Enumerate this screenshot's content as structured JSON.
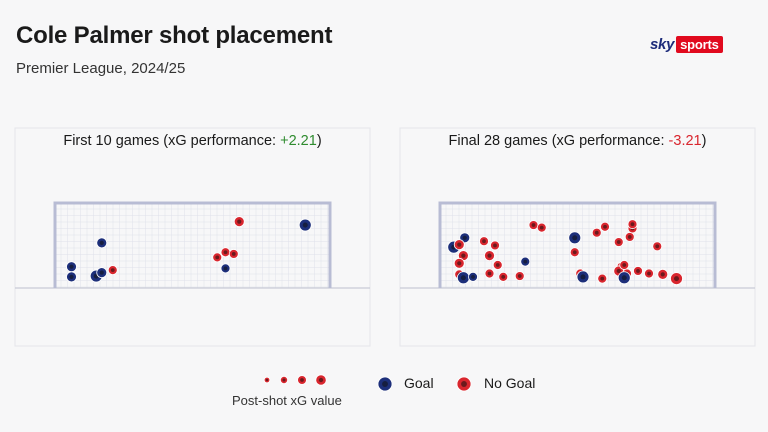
{
  "header": {
    "title": "Cole Palmer shot placement",
    "subtitle": "Premier League, 2024/25",
    "logo_sky": "sky",
    "logo_sports": "sports"
  },
  "colors": {
    "goal": "#1d2f7a",
    "no_goal": "#d9262e",
    "positive": "#2e8b2e",
    "negative": "#d9262e",
    "post": "#b8bcd4"
  },
  "legend": {
    "size_label": "Post-shot xG value",
    "goal": "Goal",
    "no_goal": "No Goal"
  },
  "chart_data": [
    {
      "type": "scatter",
      "title_prefix": "First 10 games  (xG performance: ",
      "title_value": "+2.21",
      "title_suffix": ")",
      "value_sign": "positive",
      "points": [
        {
          "x": 0.17,
          "y": 0.46,
          "r": 5,
          "outcome": "goal"
        },
        {
          "x": 0.06,
          "y": 0.18,
          "r": 5,
          "outcome": "goal"
        },
        {
          "x": 0.06,
          "y": 0.06,
          "r": 5,
          "outcome": "goal"
        },
        {
          "x": 0.15,
          "y": 0.07,
          "r": 6,
          "outcome": "goal"
        },
        {
          "x": 0.17,
          "y": 0.11,
          "r": 5,
          "outcome": "goal"
        },
        {
          "x": 0.21,
          "y": 0.14,
          "r": 4.5,
          "outcome": "no_goal"
        },
        {
          "x": 0.62,
          "y": 0.16,
          "r": 4.5,
          "outcome": "goal"
        },
        {
          "x": 0.59,
          "y": 0.29,
          "r": 4.5,
          "outcome": "no_goal"
        },
        {
          "x": 0.62,
          "y": 0.35,
          "r": 4.5,
          "outcome": "no_goal"
        },
        {
          "x": 0.65,
          "y": 0.33,
          "r": 4.5,
          "outcome": "no_goal"
        },
        {
          "x": 0.67,
          "y": 0.71,
          "r": 5,
          "outcome": "no_goal"
        },
        {
          "x": 0.91,
          "y": 0.67,
          "r": 6,
          "outcome": "goal"
        }
      ]
    },
    {
      "type": "scatter",
      "title_prefix": "Final 28 games (xG performance: ",
      "title_value": "-3.21",
      "title_suffix": ")",
      "value_sign": "negative",
      "points": [
        {
          "x": 0.05,
          "y": 0.41,
          "r": 6,
          "outcome": "goal"
        },
        {
          "x": 0.09,
          "y": 0.52,
          "r": 5,
          "outcome": "goal"
        },
        {
          "x": 0.07,
          "y": 0.44,
          "r": 5,
          "outcome": "no_goal"
        },
        {
          "x": 0.085,
          "y": 0.31,
          "r": 5,
          "outcome": "no_goal"
        },
        {
          "x": 0.07,
          "y": 0.22,
          "r": 5,
          "outcome": "no_goal"
        },
        {
          "x": 0.07,
          "y": 0.09,
          "r": 4.5,
          "outcome": "no_goal"
        },
        {
          "x": 0.085,
          "y": 0.05,
          "r": 6,
          "outcome": "goal"
        },
        {
          "x": 0.12,
          "y": 0.06,
          "r": 4.5,
          "outcome": "goal"
        },
        {
          "x": 0.16,
          "y": 0.48,
          "r": 4.5,
          "outcome": "no_goal"
        },
        {
          "x": 0.18,
          "y": 0.31,
          "r": 5,
          "outcome": "no_goal"
        },
        {
          "x": 0.2,
          "y": 0.43,
          "r": 4.5,
          "outcome": "no_goal"
        },
        {
          "x": 0.21,
          "y": 0.2,
          "r": 4.5,
          "outcome": "no_goal"
        },
        {
          "x": 0.18,
          "y": 0.1,
          "r": 4.5,
          "outcome": "no_goal"
        },
        {
          "x": 0.23,
          "y": 0.06,
          "r": 4.5,
          "outcome": "no_goal"
        },
        {
          "x": 0.29,
          "y": 0.07,
          "r": 4.5,
          "outcome": "no_goal"
        },
        {
          "x": 0.31,
          "y": 0.24,
          "r": 4.5,
          "outcome": "goal"
        },
        {
          "x": 0.34,
          "y": 0.67,
          "r": 4.5,
          "outcome": "no_goal"
        },
        {
          "x": 0.37,
          "y": 0.64,
          "r": 4.5,
          "outcome": "no_goal"
        },
        {
          "x": 0.49,
          "y": 0.52,
          "r": 6,
          "outcome": "goal"
        },
        {
          "x": 0.49,
          "y": 0.35,
          "r": 4.5,
          "outcome": "no_goal"
        },
        {
          "x": 0.51,
          "y": 0.1,
          "r": 4.5,
          "outcome": "no_goal"
        },
        {
          "x": 0.52,
          "y": 0.06,
          "r": 6,
          "outcome": "goal"
        },
        {
          "x": 0.57,
          "y": 0.58,
          "r": 4.5,
          "outcome": "no_goal"
        },
        {
          "x": 0.6,
          "y": 0.65,
          "r": 4.5,
          "outcome": "no_goal"
        },
        {
          "x": 0.59,
          "y": 0.04,
          "r": 4.5,
          "outcome": "no_goal"
        },
        {
          "x": 0.65,
          "y": 0.47,
          "r": 4.5,
          "outcome": "no_goal"
        },
        {
          "x": 0.69,
          "y": 0.53,
          "r": 4.5,
          "outcome": "no_goal"
        },
        {
          "x": 0.7,
          "y": 0.63,
          "r": 4.5,
          "outcome": "no_goal"
        },
        {
          "x": 0.7,
          "y": 0.68,
          "r": 4.5,
          "outcome": "no_goal"
        },
        {
          "x": 0.66,
          "y": 0.18,
          "r": 4.5,
          "outcome": "no_goal"
        },
        {
          "x": 0.65,
          "y": 0.13,
          "r": 5,
          "outcome": "no_goal"
        },
        {
          "x": 0.68,
          "y": 0.1,
          "r": 4.5,
          "outcome": "no_goal"
        },
        {
          "x": 0.67,
          "y": 0.2,
          "r": 4.5,
          "outcome": "no_goal"
        },
        {
          "x": 0.67,
          "y": 0.05,
          "r": 6,
          "outcome": "goal"
        },
        {
          "x": 0.72,
          "y": 0.13,
          "r": 4.5,
          "outcome": "no_goal"
        },
        {
          "x": 0.76,
          "y": 0.1,
          "r": 4.5,
          "outcome": "no_goal"
        },
        {
          "x": 0.79,
          "y": 0.42,
          "r": 4.5,
          "outcome": "no_goal"
        },
        {
          "x": 0.81,
          "y": 0.09,
          "r": 5,
          "outcome": "no_goal"
        },
        {
          "x": 0.86,
          "y": 0.04,
          "r": 6,
          "outcome": "no_goal"
        }
      ]
    }
  ]
}
